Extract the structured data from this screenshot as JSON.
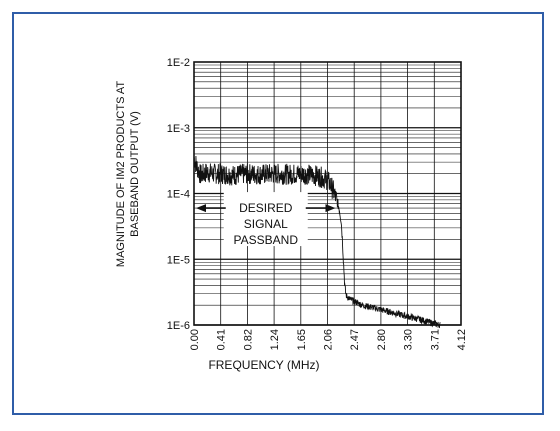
{
  "colors": {
    "frame": "#2f5da8",
    "grid": "#111111",
    "trace": "#111111"
  },
  "chart_data": {
    "type": "line",
    "xlabel": "FREQUENCY (MHz)",
    "ylabel_lines": [
      "MAGNITUDE OF IM2 PRODUCTS AT",
      "BASEBAND OUTPUT (V)"
    ],
    "x_scale": "linear",
    "xlim": [
      0,
      4.12
    ],
    "x_ticks": [
      "0.00",
      "0.41",
      "0.82",
      "1.24",
      "1.65",
      "2.06",
      "2.47",
      "2.80",
      "3.30",
      "3.71",
      "4.12"
    ],
    "y_scale": "log",
    "ylim": [
      1e-06,
      0.01
    ],
    "y_ticks": [
      "1E-6",
      "1E-5",
      "1E-4",
      "1E-3",
      "1E-2"
    ],
    "grid": true,
    "annotation": {
      "lines": [
        "DESIRED",
        "SIGNAL",
        "PASSBAND"
      ],
      "x_range": [
        0.0,
        2.06
      ],
      "y": 6e-05
    },
    "series": [
      {
        "points": [
          [
            0.0,
            0.00035
          ],
          [
            0.04,
            0.00026
          ],
          [
            0.1,
            0.00019
          ],
          [
            0.2,
            0.00021
          ],
          [
            0.3,
            0.0002
          ],
          [
            0.41,
            0.0002
          ],
          [
            0.6,
            0.00019
          ],
          [
            0.82,
            0.0002
          ],
          [
            1.0,
            0.000195
          ],
          [
            1.24,
            0.0002
          ],
          [
            1.45,
            0.000195
          ],
          [
            1.65,
            0.0002
          ],
          [
            1.85,
            0.00019
          ],
          [
            1.95,
            0.00018
          ],
          [
            2.06,
            0.00016
          ],
          [
            2.1,
            0.00014
          ],
          [
            2.15,
            0.00011
          ],
          [
            2.2,
            8e-05
          ],
          [
            2.24,
            6e-05
          ],
          [
            2.27,
            4e-05
          ],
          [
            2.29,
            2e-05
          ],
          [
            2.31,
            8e-06
          ],
          [
            2.33,
            3.5e-06
          ],
          [
            2.35,
            2.8e-06
          ],
          [
            2.4,
            2.5e-06
          ],
          [
            2.47,
            2.3e-06
          ],
          [
            2.6,
            2e-06
          ],
          [
            2.8,
            1.8e-06
          ],
          [
            3.0,
            1.6e-06
          ],
          [
            3.3,
            1.35e-06
          ],
          [
            3.5,
            1.2e-06
          ],
          [
            3.71,
            1.05e-06
          ],
          [
            3.8,
            1e-06
          ]
        ]
      }
    ]
  }
}
